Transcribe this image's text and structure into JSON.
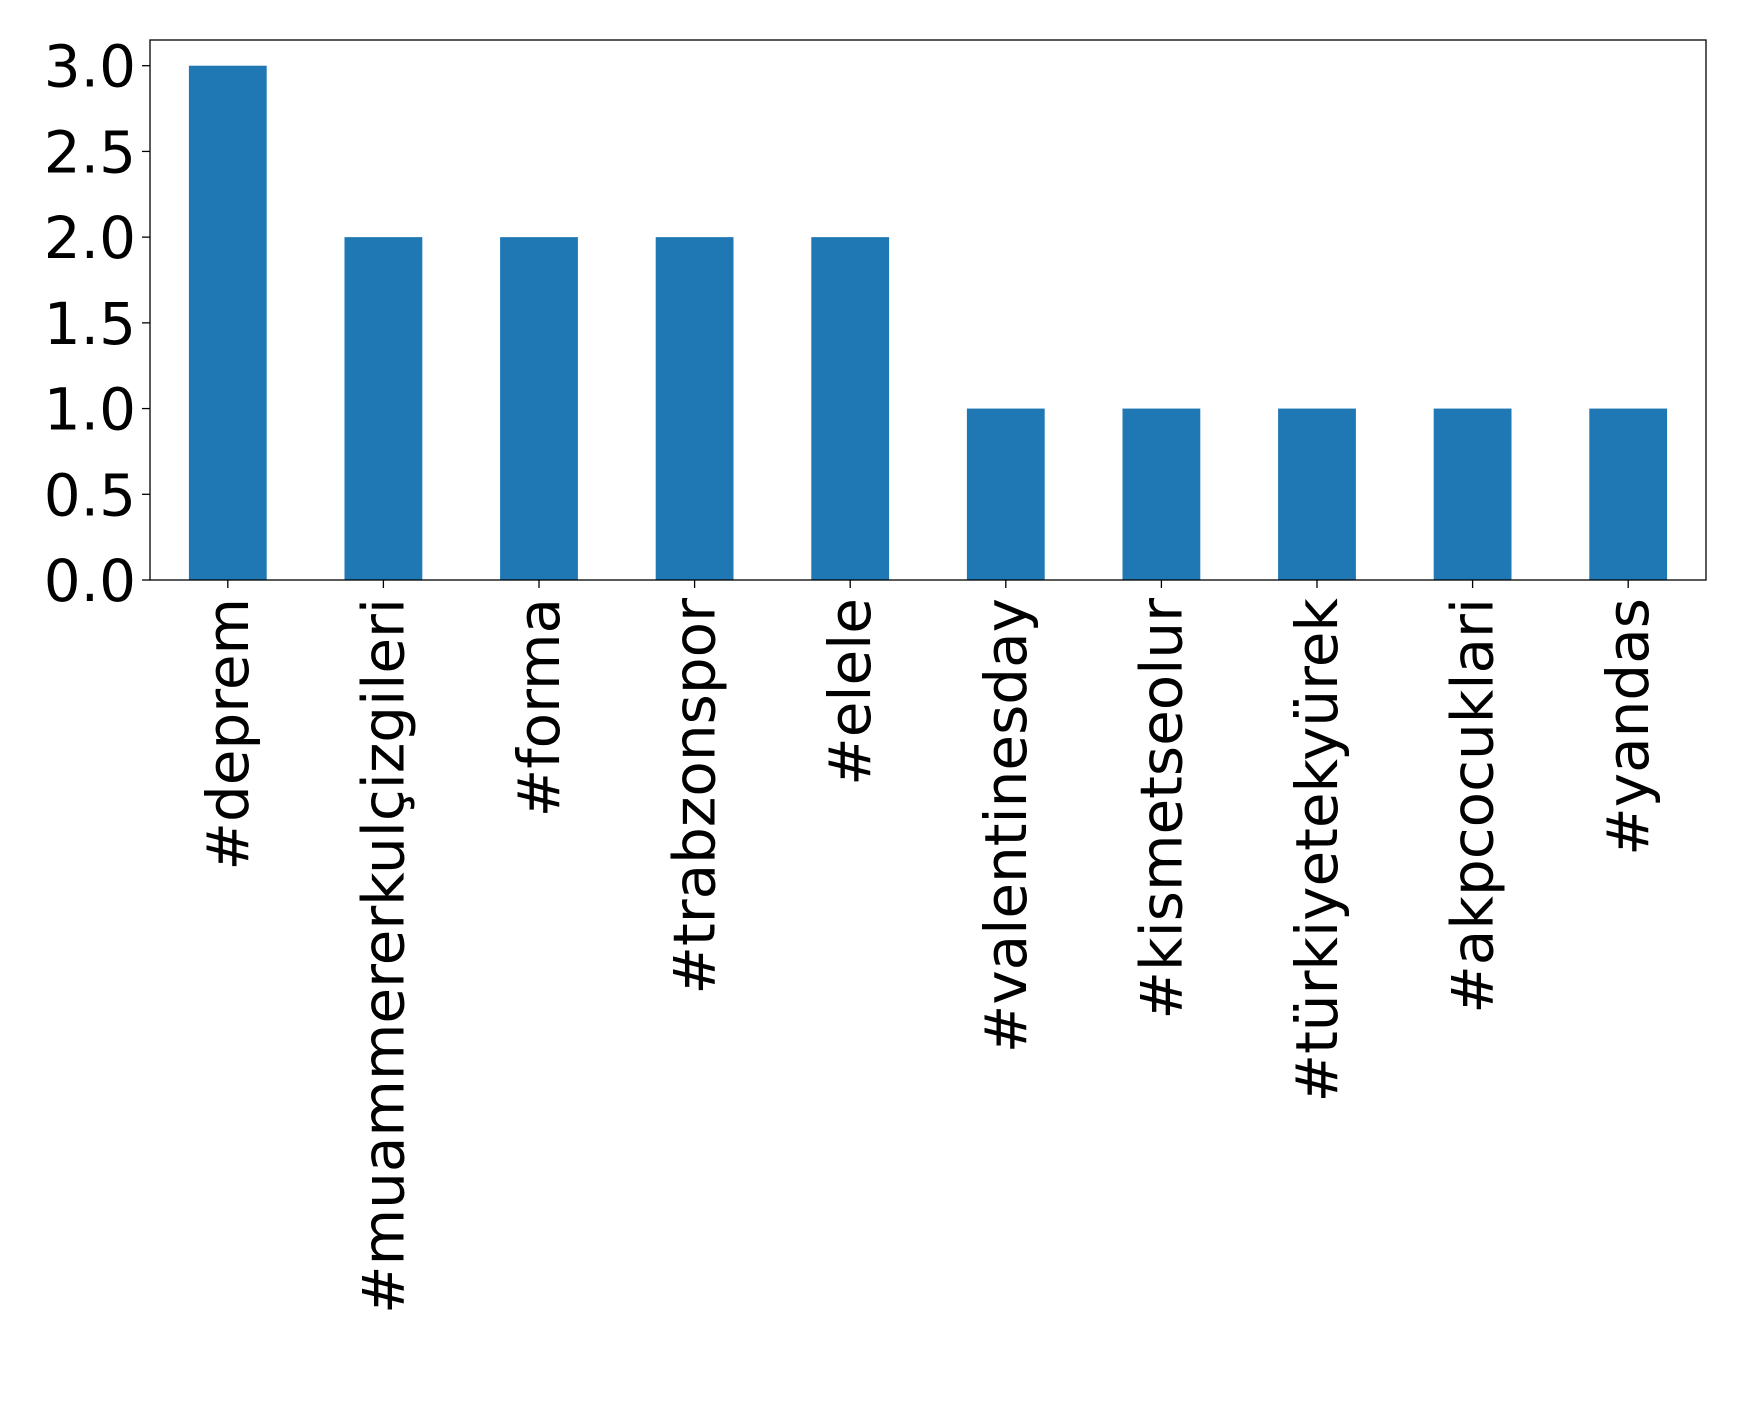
{
  "chart_data": {
    "type": "bar",
    "title": "",
    "xlabel": "",
    "ylabel": "",
    "categories": [
      "#deprem",
      "#muammererkulçizgileri",
      "#forma",
      "#trabzonspor",
      "#elele",
      "#valentinesday",
      "#kismetseolur",
      "#türkiyetekyürek",
      "#akpcocuklari",
      "#yandas"
    ],
    "values": [
      3,
      2,
      2,
      2,
      2,
      1,
      1,
      1,
      1,
      1
    ],
    "ylim": [
      0,
      3.15
    ],
    "yticks": [
      "0.0",
      "0.5",
      "1.0",
      "1.5",
      "2.0",
      "2.5",
      "3.0"
    ],
    "bar_color": "#1f77b4",
    "grid": false,
    "legend": "none"
  }
}
